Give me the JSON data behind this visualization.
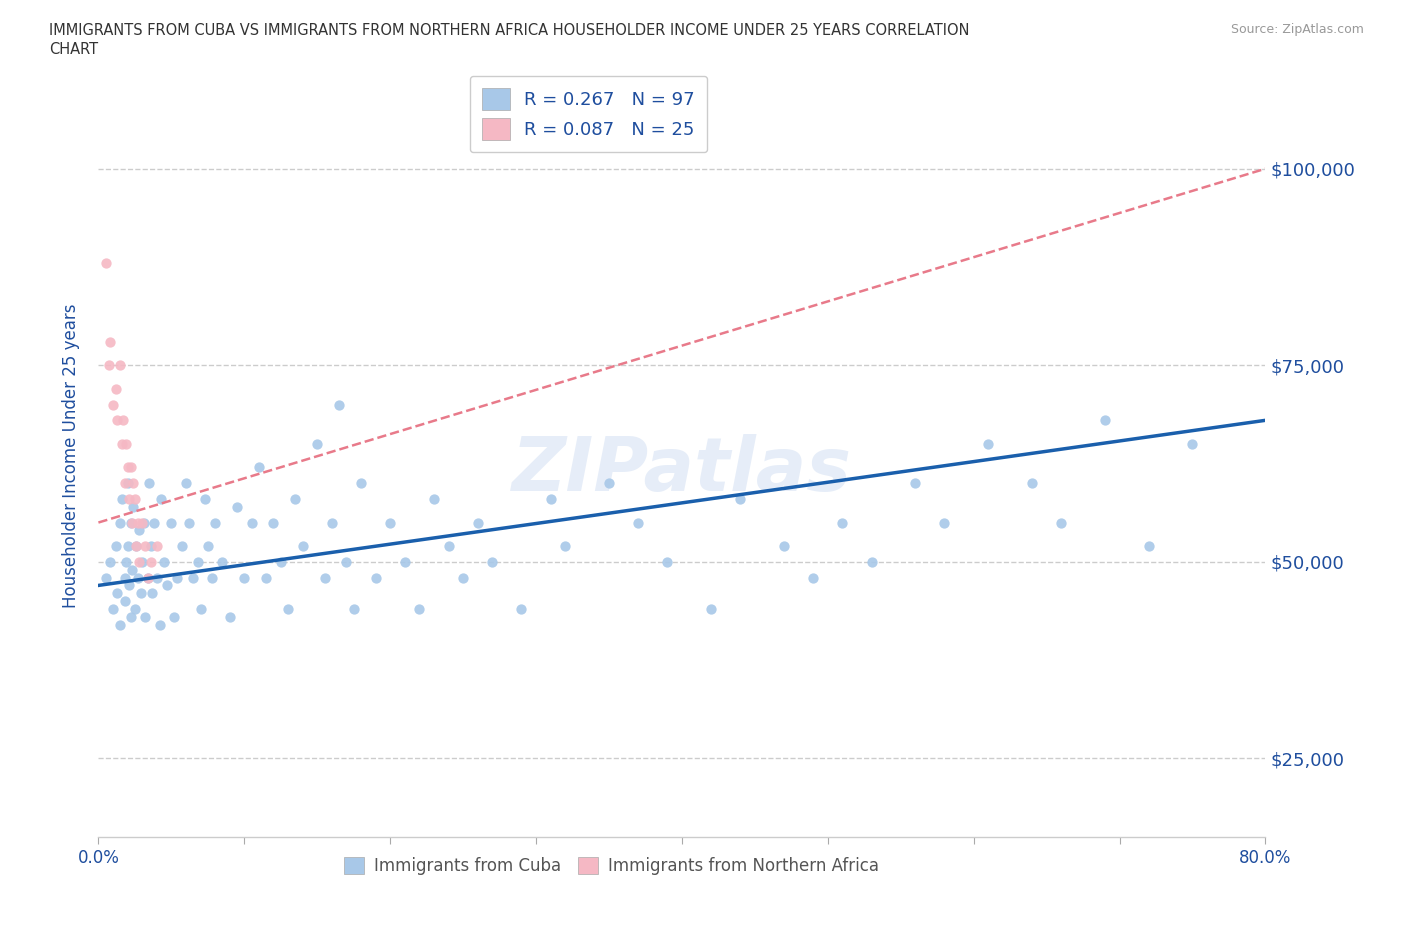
{
  "title_line1": "IMMIGRANTS FROM CUBA VS IMMIGRANTS FROM NORTHERN AFRICA HOUSEHOLDER INCOME UNDER 25 YEARS CORRELATION",
  "title_line2": "CHART",
  "source": "Source: ZipAtlas.com",
  "ylabel": "Householder Income Under 25 years",
  "xlim": [
    0,
    0.8
  ],
  "ylim": [
    15000,
    112000
  ],
  "yticks": [
    25000,
    50000,
    75000,
    100000
  ],
  "ytick_labels": [
    "$25,000",
    "$50,000",
    "$75,000",
    "$100,000"
  ],
  "xtick_vals": [
    0.0,
    0.1,
    0.2,
    0.3,
    0.4,
    0.5,
    0.6,
    0.7,
    0.8
  ],
  "xtick_labels_show": [
    "0.0%",
    "",
    "",
    "",
    "",
    "",
    "",
    "",
    "80.0%"
  ],
  "cuba_color": "#a8c8e8",
  "cuba_line_color": "#1a5fac",
  "north_africa_color": "#f5b8c4",
  "north_africa_line_color": "#e87a8a",
  "cuba_R": 0.267,
  "cuba_N": 97,
  "north_africa_R": 0.087,
  "north_africa_N": 25,
  "watermark": "ZIPatlas",
  "legend_color": "#1f4e9e",
  "tick_color": "#1f4e9e",
  "grid_color": "#cccccc",
  "cuba_x": [
    0.005,
    0.008,
    0.01,
    0.012,
    0.013,
    0.015,
    0.015,
    0.016,
    0.018,
    0.018,
    0.019,
    0.02,
    0.02,
    0.021,
    0.022,
    0.022,
    0.023,
    0.024,
    0.025,
    0.026,
    0.027,
    0.028,
    0.029,
    0.03,
    0.031,
    0.032,
    0.034,
    0.035,
    0.036,
    0.037,
    0.038,
    0.04,
    0.042,
    0.043,
    0.045,
    0.047,
    0.05,
    0.052,
    0.054,
    0.057,
    0.06,
    0.062,
    0.065,
    0.068,
    0.07,
    0.073,
    0.075,
    0.078,
    0.08,
    0.085,
    0.09,
    0.095,
    0.1,
    0.105,
    0.11,
    0.115,
    0.12,
    0.125,
    0.13,
    0.135,
    0.14,
    0.15,
    0.155,
    0.16,
    0.165,
    0.17,
    0.175,
    0.18,
    0.19,
    0.2,
    0.21,
    0.22,
    0.23,
    0.24,
    0.25,
    0.26,
    0.27,
    0.29,
    0.31,
    0.32,
    0.35,
    0.37,
    0.39,
    0.42,
    0.44,
    0.47,
    0.49,
    0.51,
    0.53,
    0.56,
    0.58,
    0.61,
    0.64,
    0.66,
    0.69,
    0.72,
    0.75
  ],
  "cuba_y": [
    48000,
    50000,
    44000,
    52000,
    46000,
    55000,
    42000,
    58000,
    48000,
    45000,
    50000,
    60000,
    52000,
    47000,
    55000,
    43000,
    49000,
    57000,
    44000,
    52000,
    48000,
    54000,
    46000,
    50000,
    55000,
    43000,
    48000,
    60000,
    52000,
    46000,
    55000,
    48000,
    42000,
    58000,
    50000,
    47000,
    55000,
    43000,
    48000,
    52000,
    60000,
    55000,
    48000,
    50000,
    44000,
    58000,
    52000,
    48000,
    55000,
    50000,
    43000,
    57000,
    48000,
    55000,
    62000,
    48000,
    55000,
    50000,
    44000,
    58000,
    52000,
    65000,
    48000,
    55000,
    70000,
    50000,
    44000,
    60000,
    48000,
    55000,
    50000,
    44000,
    58000,
    52000,
    48000,
    55000,
    50000,
    44000,
    58000,
    52000,
    60000,
    55000,
    50000,
    44000,
    58000,
    52000,
    48000,
    55000,
    50000,
    60000,
    55000,
    65000,
    60000,
    55000,
    68000,
    52000,
    65000
  ],
  "na_x": [
    0.005,
    0.007,
    0.008,
    0.01,
    0.012,
    0.013,
    0.015,
    0.016,
    0.017,
    0.018,
    0.019,
    0.02,
    0.021,
    0.022,
    0.023,
    0.024,
    0.025,
    0.026,
    0.027,
    0.028,
    0.03,
    0.032,
    0.034,
    0.036,
    0.04
  ],
  "na_y": [
    88000,
    75000,
    78000,
    70000,
    72000,
    68000,
    75000,
    65000,
    68000,
    60000,
    65000,
    62000,
    58000,
    62000,
    55000,
    60000,
    58000,
    52000,
    55000,
    50000,
    55000,
    52000,
    48000,
    50000,
    52000
  ]
}
